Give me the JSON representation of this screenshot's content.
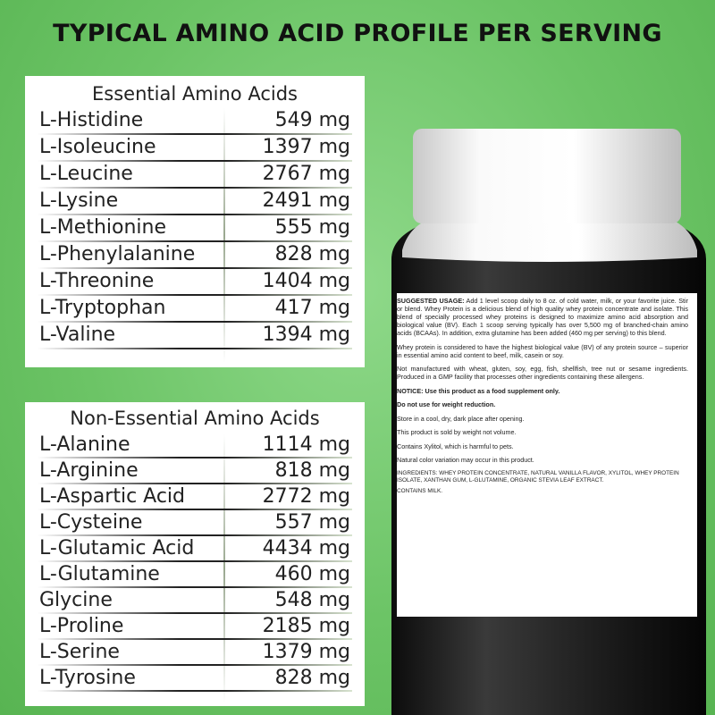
{
  "header": {
    "title": "TYPICAL AMINO ACID PROFILE PER SERVING"
  },
  "tables": [
    {
      "title": "Essential Amino Acids",
      "rows": [
        [
          "L-Histidine",
          "549 mg"
        ],
        [
          "L-Isoleucine",
          "1397 mg"
        ],
        [
          "L-Leucine",
          "2767 mg"
        ],
        [
          "L-Lysine",
          "2491 mg"
        ],
        [
          "L-Methionine",
          "555 mg"
        ],
        [
          "L-Phenylalanine",
          "828 mg"
        ],
        [
          "L-Threonine",
          "1404 mg"
        ],
        [
          "L-Tryptophan",
          "417 mg"
        ],
        [
          "L-Valine",
          "1394 mg"
        ]
      ]
    },
    {
      "title": "Non-Essential Amino Acids",
      "rows": [
        [
          "L-Alanine",
          "1114 mg"
        ],
        [
          "L-Arginine",
          "818 mg"
        ],
        [
          "L-Aspartic Acid",
          "2772 mg"
        ],
        [
          "L-Cysteine",
          "557 mg"
        ],
        [
          "L-Glutamic Acid",
          "4434 mg"
        ],
        [
          "L-Glutamine",
          "460 mg"
        ],
        [
          "Glycine",
          "548 mg"
        ],
        [
          "L-Proline",
          "2185 mg"
        ],
        [
          "L-Serine",
          "1379 mg"
        ],
        [
          "L-Tyrosine",
          "828 mg"
        ]
      ]
    }
  ],
  "label": {
    "paragraphs": [
      {
        "lead": "SUGGESTED USAGE:",
        "text": "Add 1 level scoop daily to 8 oz. of cold water, milk, or your favorite juice. Stir or blend. Whey Protein is a delicious blend of high quality whey protein concentrate and isolate. This blend of specially processed whey proteins is designed to maximize amino acid absorption and biological value (BV). Each 1 scoop serving typically has over 5,500 mg of branched-chain amino acids (BCAAs). In addition, extra glutamine has been added (460 mg per serving) to this blend."
      },
      {
        "text": "Whey protein is considered to have the highest biological value (BV) of any protein source – superior in essential amino acid content to beef, milk, casein or soy."
      },
      {
        "text": "Not manufactured with wheat, gluten, soy, egg, fish, shellfish, tree nut or sesame ingredients. Produced in a GMP facility that processes other ingredients containing these allergens."
      },
      {
        "text": "NOTICE: Use this product as a food supplement only.",
        "bold": true
      },
      {
        "text": "Do not use for weight reduction.",
        "bold": true
      },
      {
        "text": "Store in a cool, dry, dark place after opening."
      },
      {
        "text": "This product is sold by weight not volume."
      },
      {
        "text": "Contains Xylitol, which is harmful to pets."
      },
      {
        "text": "Natural color variation may occur in this product."
      },
      {
        "text": "INGREDIENTS: WHEY PROTEIN CONCENTRATE, NATURAL VANILLA FLAVOR, XYLITOL, WHEY PROTEIN ISOLATE, XANTHAN GUM, L-GLUTAMINE, ORGANIC STEVIA LEAF EXTRACT.",
        "small": true
      },
      {
        "text": "CONTAINS MILK.",
        "small": true
      }
    ]
  }
}
